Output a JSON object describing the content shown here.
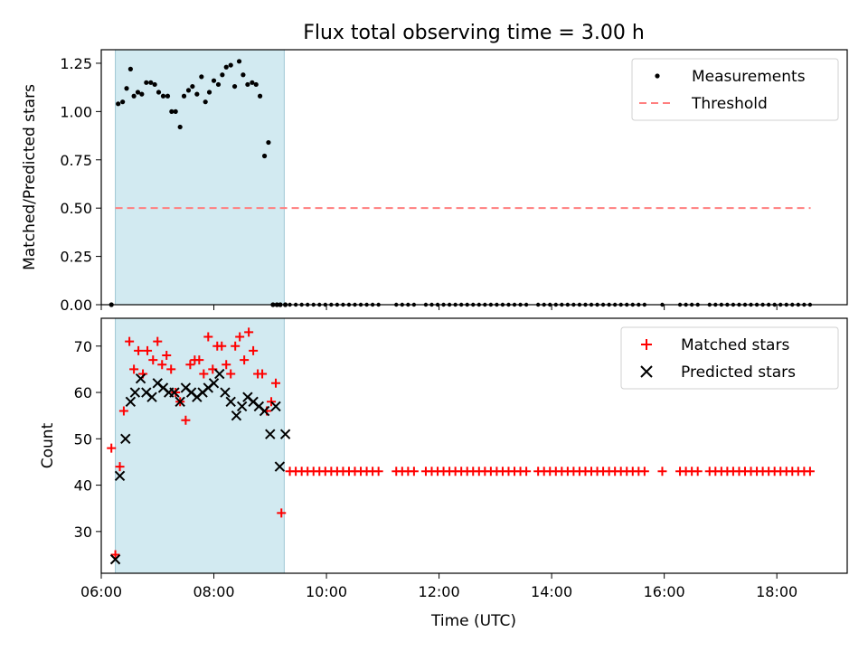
{
  "title": "Flux total observing time = 3.00 h",
  "colors": {
    "band": "#add8e6",
    "measure": "#000000",
    "threshold": "#ff7f7f",
    "matched": "#ff0000",
    "predicted": "#000000"
  },
  "chart_data": [
    {
      "type": "scatter",
      "ylabel": "Matched/Predicted stars",
      "xlim": [
        6.0,
        19.25
      ],
      "ylim": [
        0,
        1.32
      ],
      "yticks": [
        0.0,
        0.25,
        0.5,
        0.75,
        1.0,
        1.25
      ],
      "ytick_labels": [
        "0.00",
        "0.25",
        "0.50",
        "0.75",
        "1.00",
        "1.25"
      ],
      "shaded_band": [
        6.25,
        9.25
      ],
      "legend": {
        "position": "top-right",
        "entries": [
          "Measurements",
          "Threshold"
        ]
      },
      "threshold": {
        "name": "Threshold",
        "y": 0.5,
        "x": [
          6.25,
          18.6
        ]
      },
      "series": [
        {
          "name": "Measurements",
          "x": [
            6.18,
            6.3,
            6.38,
            6.45,
            6.52,
            6.58,
            6.65,
            6.72,
            6.8,
            6.88,
            6.95,
            7.02,
            7.1,
            7.18,
            7.25,
            7.32,
            7.4,
            7.47,
            7.55,
            7.62,
            7.7,
            7.78,
            7.85,
            7.92,
            8.0,
            8.08,
            8.15,
            8.22,
            8.3,
            8.37,
            8.45,
            8.52,
            8.6,
            8.68,
            8.75,
            8.82,
            8.9,
            8.97,
            9.05,
            9.12,
            9.18,
            9.27
          ],
          "y": [
            0.0,
            1.04,
            1.05,
            1.12,
            1.22,
            1.08,
            1.1,
            1.09,
            1.15,
            1.15,
            1.14,
            1.1,
            1.08,
            1.08,
            1.0,
            1.0,
            0.92,
            1.08,
            1.11,
            1.13,
            1.09,
            1.18,
            1.05,
            1.1,
            1.16,
            1.14,
            1.19,
            1.23,
            1.24,
            1.13,
            1.26,
            1.19,
            1.14,
            1.15,
            1.14,
            1.08,
            0.77,
            0.84,
            0.0,
            0.0,
            0.0,
            0.0
          ]
        }
      ]
    },
    {
      "type": "scatter",
      "xlabel": "Time (UTC)",
      "ylabel": "Count",
      "xlim": [
        6.0,
        19.25
      ],
      "ylim": [
        21,
        76
      ],
      "yticks": [
        30,
        40,
        50,
        60,
        70
      ],
      "ytick_labels": [
        "30",
        "40",
        "50",
        "60",
        "70"
      ],
      "xticks": [
        6,
        8,
        10,
        12,
        14,
        16,
        18
      ],
      "xtick_labels": [
        "06:00",
        "08:00",
        "10:00",
        "12:00",
        "14:00",
        "16:00",
        "18:00"
      ],
      "shaded_band": [
        6.25,
        9.25
      ],
      "legend": {
        "position": "top-right",
        "entries": [
          "Matched stars",
          "Predicted stars"
        ]
      },
      "series": [
        {
          "name": "Matched stars",
          "x": [
            6.18,
            6.25,
            6.33,
            6.4,
            6.5,
            6.58,
            6.66,
            6.74,
            6.82,
            6.92,
            7.0,
            7.08,
            7.16,
            7.24,
            7.32,
            7.4,
            7.5,
            7.58,
            7.66,
            7.74,
            7.82,
            7.9,
            7.98,
            8.06,
            8.14,
            8.22,
            8.3,
            8.38,
            8.46,
            8.54,
            8.62,
            8.7,
            8.78,
            8.86,
            8.94,
            9.02,
            9.1,
            9.2
          ],
          "y": [
            48,
            25,
            44,
            56,
            71,
            65,
            69,
            64,
            69,
            67,
            71,
            66,
            68,
            65,
            60,
            58,
            54,
            66,
            67,
            67,
            64,
            72,
            65,
            70,
            70,
            66,
            64,
            70,
            72,
            67,
            73,
            69,
            64,
            64,
            56,
            58,
            62,
            34
          ]
        },
        {
          "name": "Predicted stars",
          "x": [
            6.25,
            6.33,
            6.43,
            6.52,
            6.6,
            6.7,
            6.8,
            6.9,
            7.0,
            7.1,
            7.2,
            7.3,
            7.4,
            7.5,
            7.6,
            7.7,
            7.8,
            7.9,
            8.0,
            8.1,
            8.2,
            8.3,
            8.4,
            8.5,
            8.6,
            8.7,
            8.8,
            8.9,
            9.0,
            9.1,
            9.17,
            9.27
          ],
          "y": [
            24,
            42,
            50,
            58,
            60,
            63,
            60,
            59,
            62,
            61,
            60,
            60,
            58,
            61,
            60,
            59,
            60,
            61,
            62,
            64,
            60,
            58,
            55,
            57,
            59,
            58,
            57,
            56,
            51,
            57,
            44,
            51
          ]
        }
      ]
    }
  ]
}
